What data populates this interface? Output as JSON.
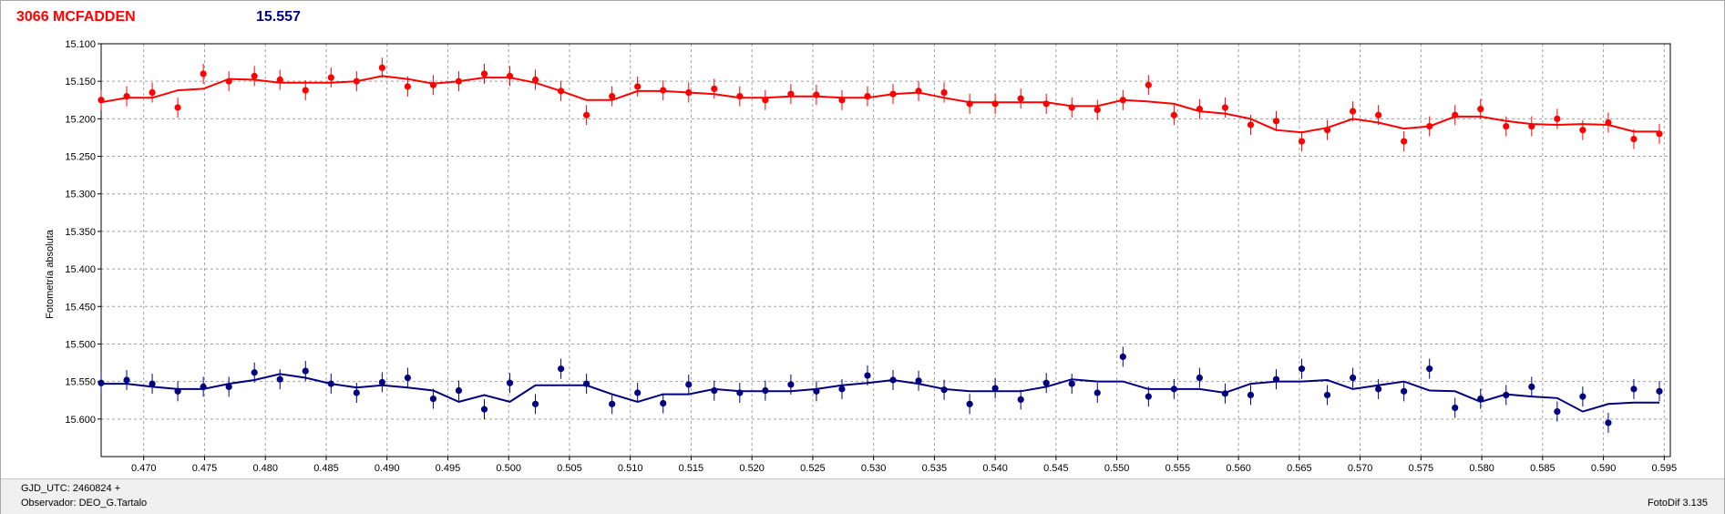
{
  "header": {
    "object_name": "3066 MCFADDEN",
    "magnitude": "15.557"
  },
  "footer": {
    "gjd": "GJD_UTC: 2460824 +",
    "observer": "Observador: DEO_G.Tartalo",
    "version": "FotoDif 3.135"
  },
  "colors": {
    "red_series": "#ff0000",
    "blue_series": "#000080",
    "grid": "#a0a0a0"
  },
  "chart_data": {
    "type": "scatter",
    "xlabel": "",
    "ylabel": "Fotometría absoluta",
    "xlim": [
      0.4665,
      0.5955
    ],
    "ylim": [
      15.1,
      15.65
    ],
    "y_inverted": true,
    "grid": true,
    "x_ticks": [
      "0.470",
      "0.475",
      "0.480",
      "0.485",
      "0.490",
      "0.495",
      "0.500",
      "0.505",
      "0.510",
      "0.515",
      "0.520",
      "0.525",
      "0.530",
      "0.535",
      "0.540",
      "0.545",
      "0.550",
      "0.555",
      "0.560",
      "0.565",
      "0.570",
      "0.575",
      "0.580",
      "0.585",
      "0.590",
      "0.595"
    ],
    "y_ticks": [
      "15.100",
      "15.150",
      "15.200",
      "15.250",
      "15.300",
      "15.350",
      "15.400",
      "15.450",
      "15.500",
      "15.550",
      "15.600"
    ],
    "series": [
      {
        "color": "#ff0000",
        "x": [
          0.4665,
          0.4686,
          0.4707,
          0.4728,
          0.4749,
          0.477,
          0.4791,
          0.4812,
          0.4833,
          0.4854,
          0.4875,
          0.4896,
          0.4917,
          0.4938,
          0.4959,
          0.498,
          0.5001,
          0.5022,
          0.5043,
          0.5064,
          0.5085,
          0.5106,
          0.5127,
          0.5148,
          0.5169,
          0.519,
          0.5211,
          0.5232,
          0.5253,
          0.5274,
          0.5295,
          0.5316,
          0.5337,
          0.5358,
          0.5379,
          0.54,
          0.5421,
          0.5442,
          0.5463,
          0.5484,
          0.5505,
          0.5526,
          0.5547,
          0.5568,
          0.5589,
          0.561,
          0.5631,
          0.5652,
          0.5673,
          0.5694,
          0.5715,
          0.5736,
          0.5757,
          0.5778,
          0.5799,
          0.582,
          0.5841,
          0.5862,
          0.5883,
          0.5904,
          0.5925,
          0.5946
        ],
        "y": [
          15.175,
          15.17,
          15.165,
          15.185,
          15.14,
          15.15,
          15.143,
          15.148,
          15.162,
          15.145,
          15.15,
          15.132,
          15.157,
          15.155,
          15.15,
          15.14,
          15.143,
          15.148,
          15.163,
          15.195,
          15.17,
          15.157,
          15.162,
          15.165,
          15.16,
          15.17,
          15.175,
          15.167,
          15.168,
          15.175,
          15.17,
          15.167,
          15.163,
          15.165,
          15.18,
          15.18,
          15.173,
          15.18,
          15.185,
          15.188,
          15.175,
          15.155,
          15.195,
          15.187,
          15.185,
          15.208,
          15.203,
          15.23,
          15.215,
          15.19,
          15.195,
          15.23,
          15.21,
          15.195,
          15.187,
          15.21,
          15.21,
          15.2,
          15.215,
          15.205,
          15.227,
          15.22
        ],
        "fit": [
          15.178,
          15.172,
          15.172,
          15.162,
          15.16,
          15.147,
          15.148,
          15.152,
          15.152,
          15.152,
          15.15,
          15.143,
          15.147,
          15.153,
          15.15,
          15.145,
          15.145,
          15.152,
          15.163,
          15.175,
          15.175,
          15.163,
          15.163,
          15.165,
          15.167,
          15.172,
          15.172,
          15.17,
          15.17,
          15.172,
          15.172,
          15.167,
          15.165,
          15.172,
          15.178,
          15.178,
          15.178,
          15.178,
          15.183,
          15.183,
          15.175,
          15.177,
          15.18,
          15.19,
          15.193,
          15.2,
          15.215,
          15.218,
          15.212,
          15.2,
          15.205,
          15.213,
          15.21,
          15.197,
          15.197,
          15.203,
          15.207,
          15.208,
          15.207,
          15.208,
          15.217,
          15.217
        ]
      },
      {
        "color": "#000080",
        "x": [
          0.4665,
          0.4686,
          0.4707,
          0.4728,
          0.4749,
          0.477,
          0.4791,
          0.4812,
          0.4833,
          0.4854,
          0.4875,
          0.4896,
          0.4917,
          0.4938,
          0.4959,
          0.498,
          0.5001,
          0.5022,
          0.5043,
          0.5064,
          0.5085,
          0.5106,
          0.5127,
          0.5148,
          0.5169,
          0.519,
          0.5211,
          0.5232,
          0.5253,
          0.5274,
          0.5295,
          0.5316,
          0.5337,
          0.5358,
          0.5379,
          0.54,
          0.5421,
          0.5442,
          0.5463,
          0.5484,
          0.5505,
          0.5526,
          0.5547,
          0.5568,
          0.5589,
          0.561,
          0.5631,
          0.5652,
          0.5673,
          0.5694,
          0.5715,
          0.5736,
          0.5757,
          0.5778,
          0.5799,
          0.582,
          0.5841,
          0.5862,
          0.5883,
          0.5904,
          0.5925,
          0.5946
        ],
        "y": [
          15.552,
          15.548,
          15.553,
          15.563,
          15.557,
          15.557,
          15.538,
          15.547,
          15.536,
          15.553,
          15.565,
          15.551,
          15.545,
          15.573,
          15.562,
          15.587,
          15.552,
          15.58,
          15.533,
          15.553,
          15.58,
          15.565,
          15.579,
          15.554,
          15.562,
          15.565,
          15.562,
          15.554,
          15.563,
          15.56,
          15.542,
          15.548,
          15.549,
          15.561,
          15.58,
          15.559,
          15.574,
          15.552,
          15.553,
          15.565,
          15.517,
          15.57,
          15.56,
          15.545,
          15.566,
          15.568,
          15.547,
          15.533,
          15.568,
          15.545,
          15.56,
          15.563,
          15.533,
          15.585,
          15.573,
          15.568,
          15.557,
          15.59,
          15.57,
          15.605,
          15.56,
          15.563
        ],
        "fit": [
          15.553,
          15.553,
          15.557,
          15.56,
          15.56,
          15.553,
          15.548,
          15.54,
          15.545,
          15.553,
          15.558,
          15.555,
          15.558,
          15.562,
          15.577,
          15.568,
          15.577,
          15.555,
          15.555,
          15.555,
          15.567,
          15.577,
          15.567,
          15.567,
          15.56,
          15.563,
          15.563,
          15.563,
          15.56,
          15.555,
          15.552,
          15.548,
          15.553,
          15.56,
          15.563,
          15.563,
          15.563,
          15.557,
          15.547,
          15.55,
          15.55,
          15.56,
          15.56,
          15.56,
          15.565,
          15.553,
          15.55,
          15.55,
          15.548,
          15.56,
          15.555,
          15.55,
          15.562,
          15.563,
          15.577,
          15.567,
          15.57,
          15.572,
          15.59,
          15.58,
          15.578,
          15.578
        ]
      }
    ]
  }
}
